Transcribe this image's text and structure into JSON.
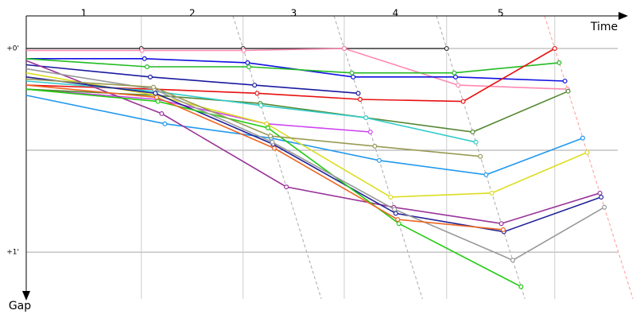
{
  "chart_data": {
    "type": "line",
    "x_label": "Time",
    "y_label": "Gap",
    "lap_labels": [
      "1",
      "2",
      "3",
      "4",
      "5"
    ],
    "lap_times": [
      0,
      1.81,
      3.41,
      5.0,
      6.61,
      8.31
    ],
    "xlim": [
      0,
      9.3
    ],
    "ylim": [
      -0.16,
      1.23
    ],
    "yticks": [
      {
        "value": 0,
        "label": "+0'"
      },
      {
        "value": 1,
        "label": "+1'"
      }
    ],
    "ygrid": [
      0,
      0.5,
      1
    ],
    "series": [
      {
        "color": "#333333",
        "values": [
          0,
          0,
          0,
          0,
          0,
          null
        ]
      },
      {
        "color": "#ff88b0",
        "values": [
          0.01,
          0.01,
          0.01,
          0,
          0.18,
          0.2
        ]
      },
      {
        "color": "#1010e0",
        "values": [
          0.05,
          0.05,
          0.07,
          0.14,
          0.14,
          0.16
        ]
      },
      {
        "color": "#22bb22",
        "values": [
          0.05,
          0.09,
          0.09,
          0.12,
          0.12,
          0.07
        ]
      },
      {
        "color": "#e81010",
        "values": [
          0.18,
          0.2,
          0.22,
          0.25,
          0.26,
          0
        ]
      },
      {
        "color": "#1a1aa0",
        "values": [
          0.08,
          0.14,
          0.18,
          0.22,
          null,
          null
        ]
      },
      {
        "color": "#cc44ee",
        "values": [
          0.2,
          0.25,
          0.37,
          0.41,
          null,
          null
        ]
      },
      {
        "color": "#558833",
        "values": [
          0.2,
          0.23,
          0.27,
          0.34,
          0.41,
          0.21
        ]
      },
      {
        "color": "#33cccc",
        "values": [
          0.16,
          0.21,
          0.28,
          0.34,
          0.46,
          null
        ]
      },
      {
        "color": "#2299ee",
        "values": [
          0.23,
          0.37,
          0.44,
          0.55,
          0.62,
          0.44
        ]
      },
      {
        "color": "#dddd22",
        "values": [
          0.12,
          0.23,
          0.37,
          0.73,
          0.71,
          0.51
        ]
      },
      {
        "color": "#993399",
        "values": [
          0.06,
          0.32,
          0.68,
          0.78,
          0.86,
          0.71
        ]
      },
      {
        "color": "#222299",
        "values": [
          0.14,
          0.22,
          0.47,
          0.81,
          0.9,
          0.73
        ]
      },
      {
        "color": "#22cc11",
        "values": [
          0.2,
          0.26,
          0.39,
          0.86,
          1.17,
          null
        ]
      },
      {
        "color": "#999999",
        "values": [
          0.1,
          0.2,
          0.46,
          0.79,
          1.04,
          0.78
        ]
      },
      {
        "color": "#999955",
        "values": [
          0.15,
          0.19,
          0.43,
          0.48,
          0.53,
          null
        ]
      },
      {
        "color": "#ee6622",
        "values": [
          0.18,
          0.24,
          0.49,
          0.84,
          0.89,
          null
        ]
      }
    ]
  }
}
